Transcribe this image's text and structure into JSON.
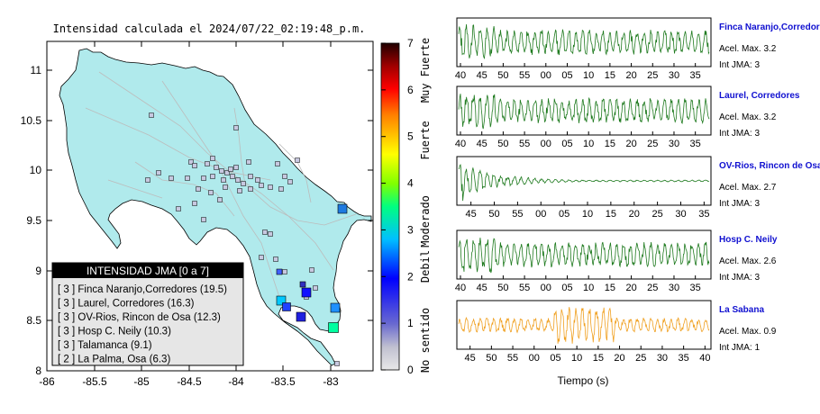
{
  "map": {
    "title": "Intensidad calculada el 2024/07/22_02:19:48_p.m.",
    "x_ticks": [
      "-86",
      "-85.5",
      "-85",
      "-84.5",
      "-84",
      "-83.5",
      "-83"
    ],
    "y_ticks": [
      "11",
      "10.5",
      "10",
      "9.5",
      "9",
      "8.5",
      "8"
    ],
    "colors": {
      "land": "#b0eaec",
      "border": "#000000",
      "road": "#bcbcbc"
    },
    "legend": {
      "title": "INTENSIDAD JMA [0 a 7]",
      "items": [
        "[ 3 ]  Finca Naranjo,Corredores (19.5)",
        "[ 3 ]  Laurel, Corredores (16.3)",
        "[ 3 ]  OV-Rios, Rincon de Osa (12.3)",
        "[ 3 ]  Hosp C. Neily (10.3)",
        "[ 3 ]  Talamanca (9.1)",
        "[ 2 ]  La Palma, Osa (6.3)"
      ]
    }
  },
  "colorbar": {
    "ticks": [
      "7",
      "6",
      "5",
      "4",
      "3",
      "2",
      "1",
      "0"
    ],
    "labels": [
      "Muy Fuerte",
      "Fuerte",
      "Moderado",
      "Debil",
      "No sentido"
    ],
    "colors": [
      "#dddddd",
      "#7070b0",
      "#0000ff",
      "#00a0ff",
      "#00ff80",
      "#80ff00",
      "#ffff00",
      "#ff8000",
      "#ff0000",
      "#a00000",
      "#200000"
    ]
  },
  "waveforms": {
    "xlabel": "Tiempo (s)",
    "panels": [
      {
        "name": "Finca Naranjo,Corredores",
        "acel": "Acel. Max. 3.2",
        "int": "Int JMA: 3",
        "color": "#1e7a1e",
        "ticks": [
          "40",
          "45",
          "50",
          "55",
          "00",
          "05",
          "10",
          "15",
          "20",
          "25",
          "30",
          "35"
        ],
        "style": "steady"
      },
      {
        "name": "Laurel, Corredores",
        "acel": "Acel. Max. 3.2",
        "int": "Int JMA: 3",
        "color": "#1e7a1e",
        "ticks": [
          "40",
          "45",
          "50",
          "55",
          "00",
          "05",
          "10",
          "15",
          "20",
          "25",
          "30",
          "35"
        ],
        "style": "steady"
      },
      {
        "name": "OV-Rios, Rincon de Osa",
        "acel": "Acel. Max. 2.7",
        "int": "Int JMA: 3",
        "color": "#1e7a1e",
        "ticks": [
          "45",
          "50",
          "55",
          "00",
          "05",
          "10",
          "15",
          "20",
          "25",
          "30",
          "35"
        ],
        "style": "decay"
      },
      {
        "name": "Hosp C. Neily",
        "acel": "Acel. Max. 2.6",
        "int": "Int JMA: 3",
        "color": "#1e7a1e",
        "ticks": [
          "40",
          "45",
          "50",
          "55",
          "00",
          "05",
          "10",
          "15",
          "20",
          "25",
          "30",
          "35"
        ],
        "style": "steady"
      },
      {
        "name": "La Sabana",
        "acel": "Acel. Max. 0.9",
        "int": "Int JMA: 1",
        "color": "#f0a020",
        "ticks": [
          "45",
          "50",
          "55",
          "00",
          "05",
          "10",
          "15",
          "20",
          "25",
          "30",
          "35",
          "40"
        ],
        "style": "burst"
      }
    ]
  }
}
